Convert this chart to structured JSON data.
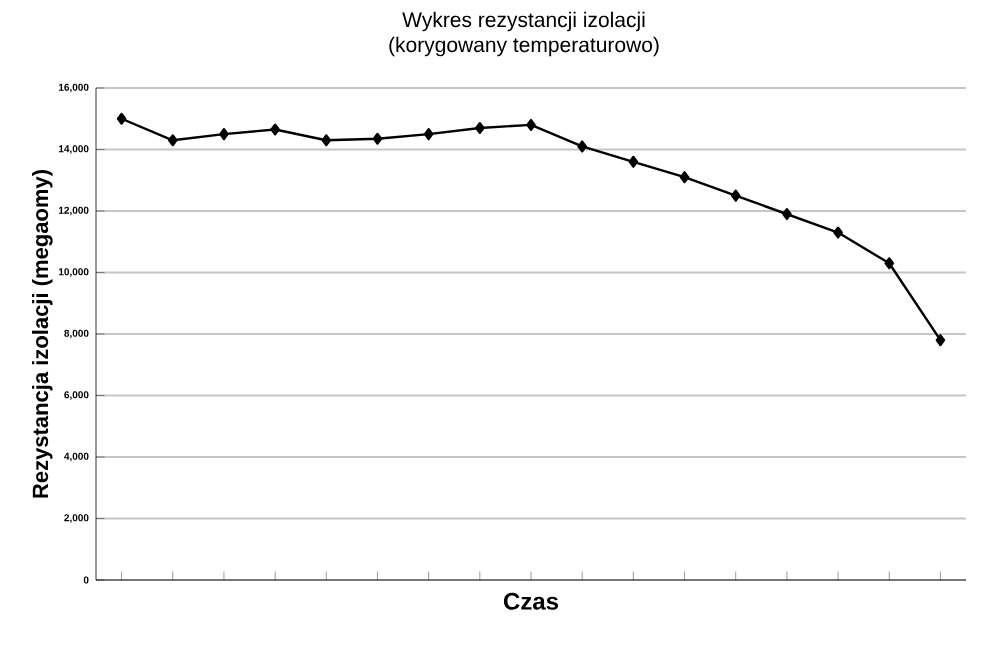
{
  "chart_data": {
    "type": "line",
    "title": "Wykres rezystancji izolacji\n(korygowany temperaturowo)",
    "xlabel": "Czas",
    "ylabel": "Rezystancja izolacji (megaomy)",
    "categories": [
      null,
      null,
      null,
      null,
      null,
      null,
      null,
      null,
      null,
      null,
      null,
      null,
      null,
      null,
      null,
      null,
      null
    ],
    "series": [
      {
        "color": "#000000",
        "values": [
          15000,
          14300,
          14500,
          14650,
          14300,
          14350,
          14500,
          14700,
          14800,
          14100,
          13600,
          13100,
          12500,
          11900,
          11300,
          10300,
          7800
        ]
      }
    ],
    "ylim": [
      0,
      16000
    ],
    "yticks": [
      {
        "value": 0,
        "label": "0"
      },
      {
        "value": 2000,
        "label": "2,000"
      },
      {
        "value": 4000,
        "label": "4,000"
      },
      {
        "value": 6000,
        "label": "6,000"
      },
      {
        "value": 8000,
        "label": "8,000"
      },
      {
        "value": 10000,
        "label": "10,000"
      },
      {
        "value": 12000,
        "label": "12,000"
      },
      {
        "value": 14000,
        "label": "14,000"
      },
      {
        "value": 16000,
        "label": "16,000"
      }
    ],
    "grid": "y",
    "marker": "diamond",
    "line_style": "solid"
  }
}
